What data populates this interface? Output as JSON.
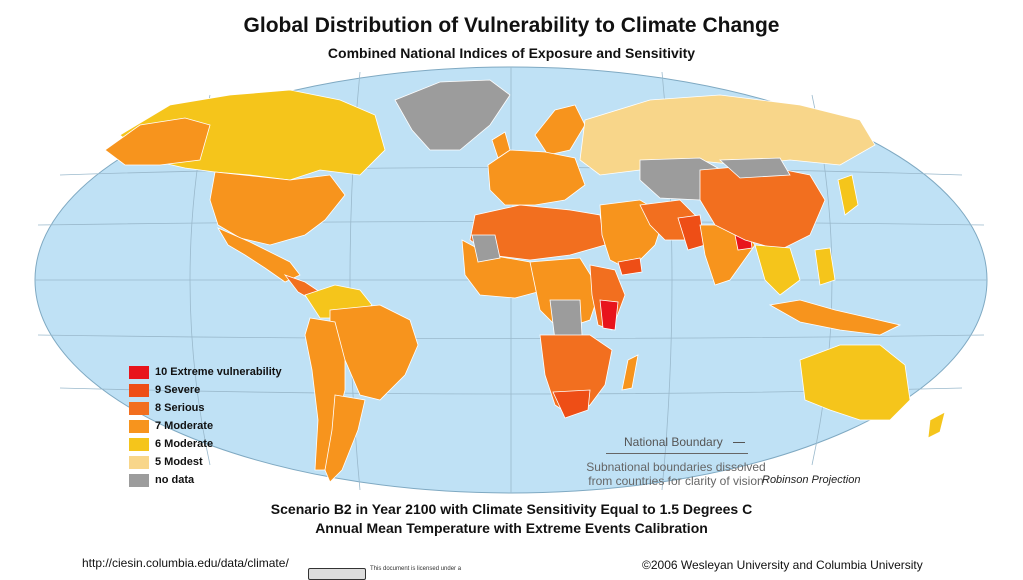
{
  "header": {
    "title": "Global Distribution of Vulnerability to Climate Change",
    "subtitle": "Combined National Indices of Exposure and Sensitivity"
  },
  "colors": {
    "ocean": "#bfe1f5",
    "graticule": "#9ab9cc",
    "level_10": "#e8141c",
    "level_9": "#ee4e16",
    "level_8": "#f26f1f",
    "level_7": "#f7941d",
    "level_6": "#f5c51b",
    "level_5": "#f8d68a",
    "no_data": "#9c9c9c"
  },
  "legend": {
    "items": [
      {
        "label": "10 Extreme vulnerability",
        "color": "#e8141c"
      },
      {
        "label": "9  Severe",
        "color": "#ee4e16"
      },
      {
        "label": "8  Serious",
        "color": "#f26f1f"
      },
      {
        "label": "7  Moderate",
        "color": "#f7941d"
      },
      {
        "label": "6  Moderate",
        "color": "#f5c51b"
      },
      {
        "label": "5  Modest",
        "color": "#f8d68a"
      },
      {
        "label": "no data",
        "color": "#9c9c9c"
      }
    ]
  },
  "annotations": {
    "national_boundary": "National Boundary",
    "subnational_note_line1": "Subnational boundaries dissolved",
    "subnational_note_line2": "from countries for clarity of vision",
    "projection": "Robinson Projection"
  },
  "footer": {
    "scenario_line1": "Scenario B2 in Year 2100 with Climate Sensitivity Equal to 1.5 Degrees C",
    "scenario_line2": "Annual Mean Temperature with Extreme Events Calibration",
    "url": "http://ciesin.columbia.edu/data/climate/",
    "license_text": "This document is licensed under a",
    "copyright": "©2006 Wesleyan University and Columbia University"
  }
}
